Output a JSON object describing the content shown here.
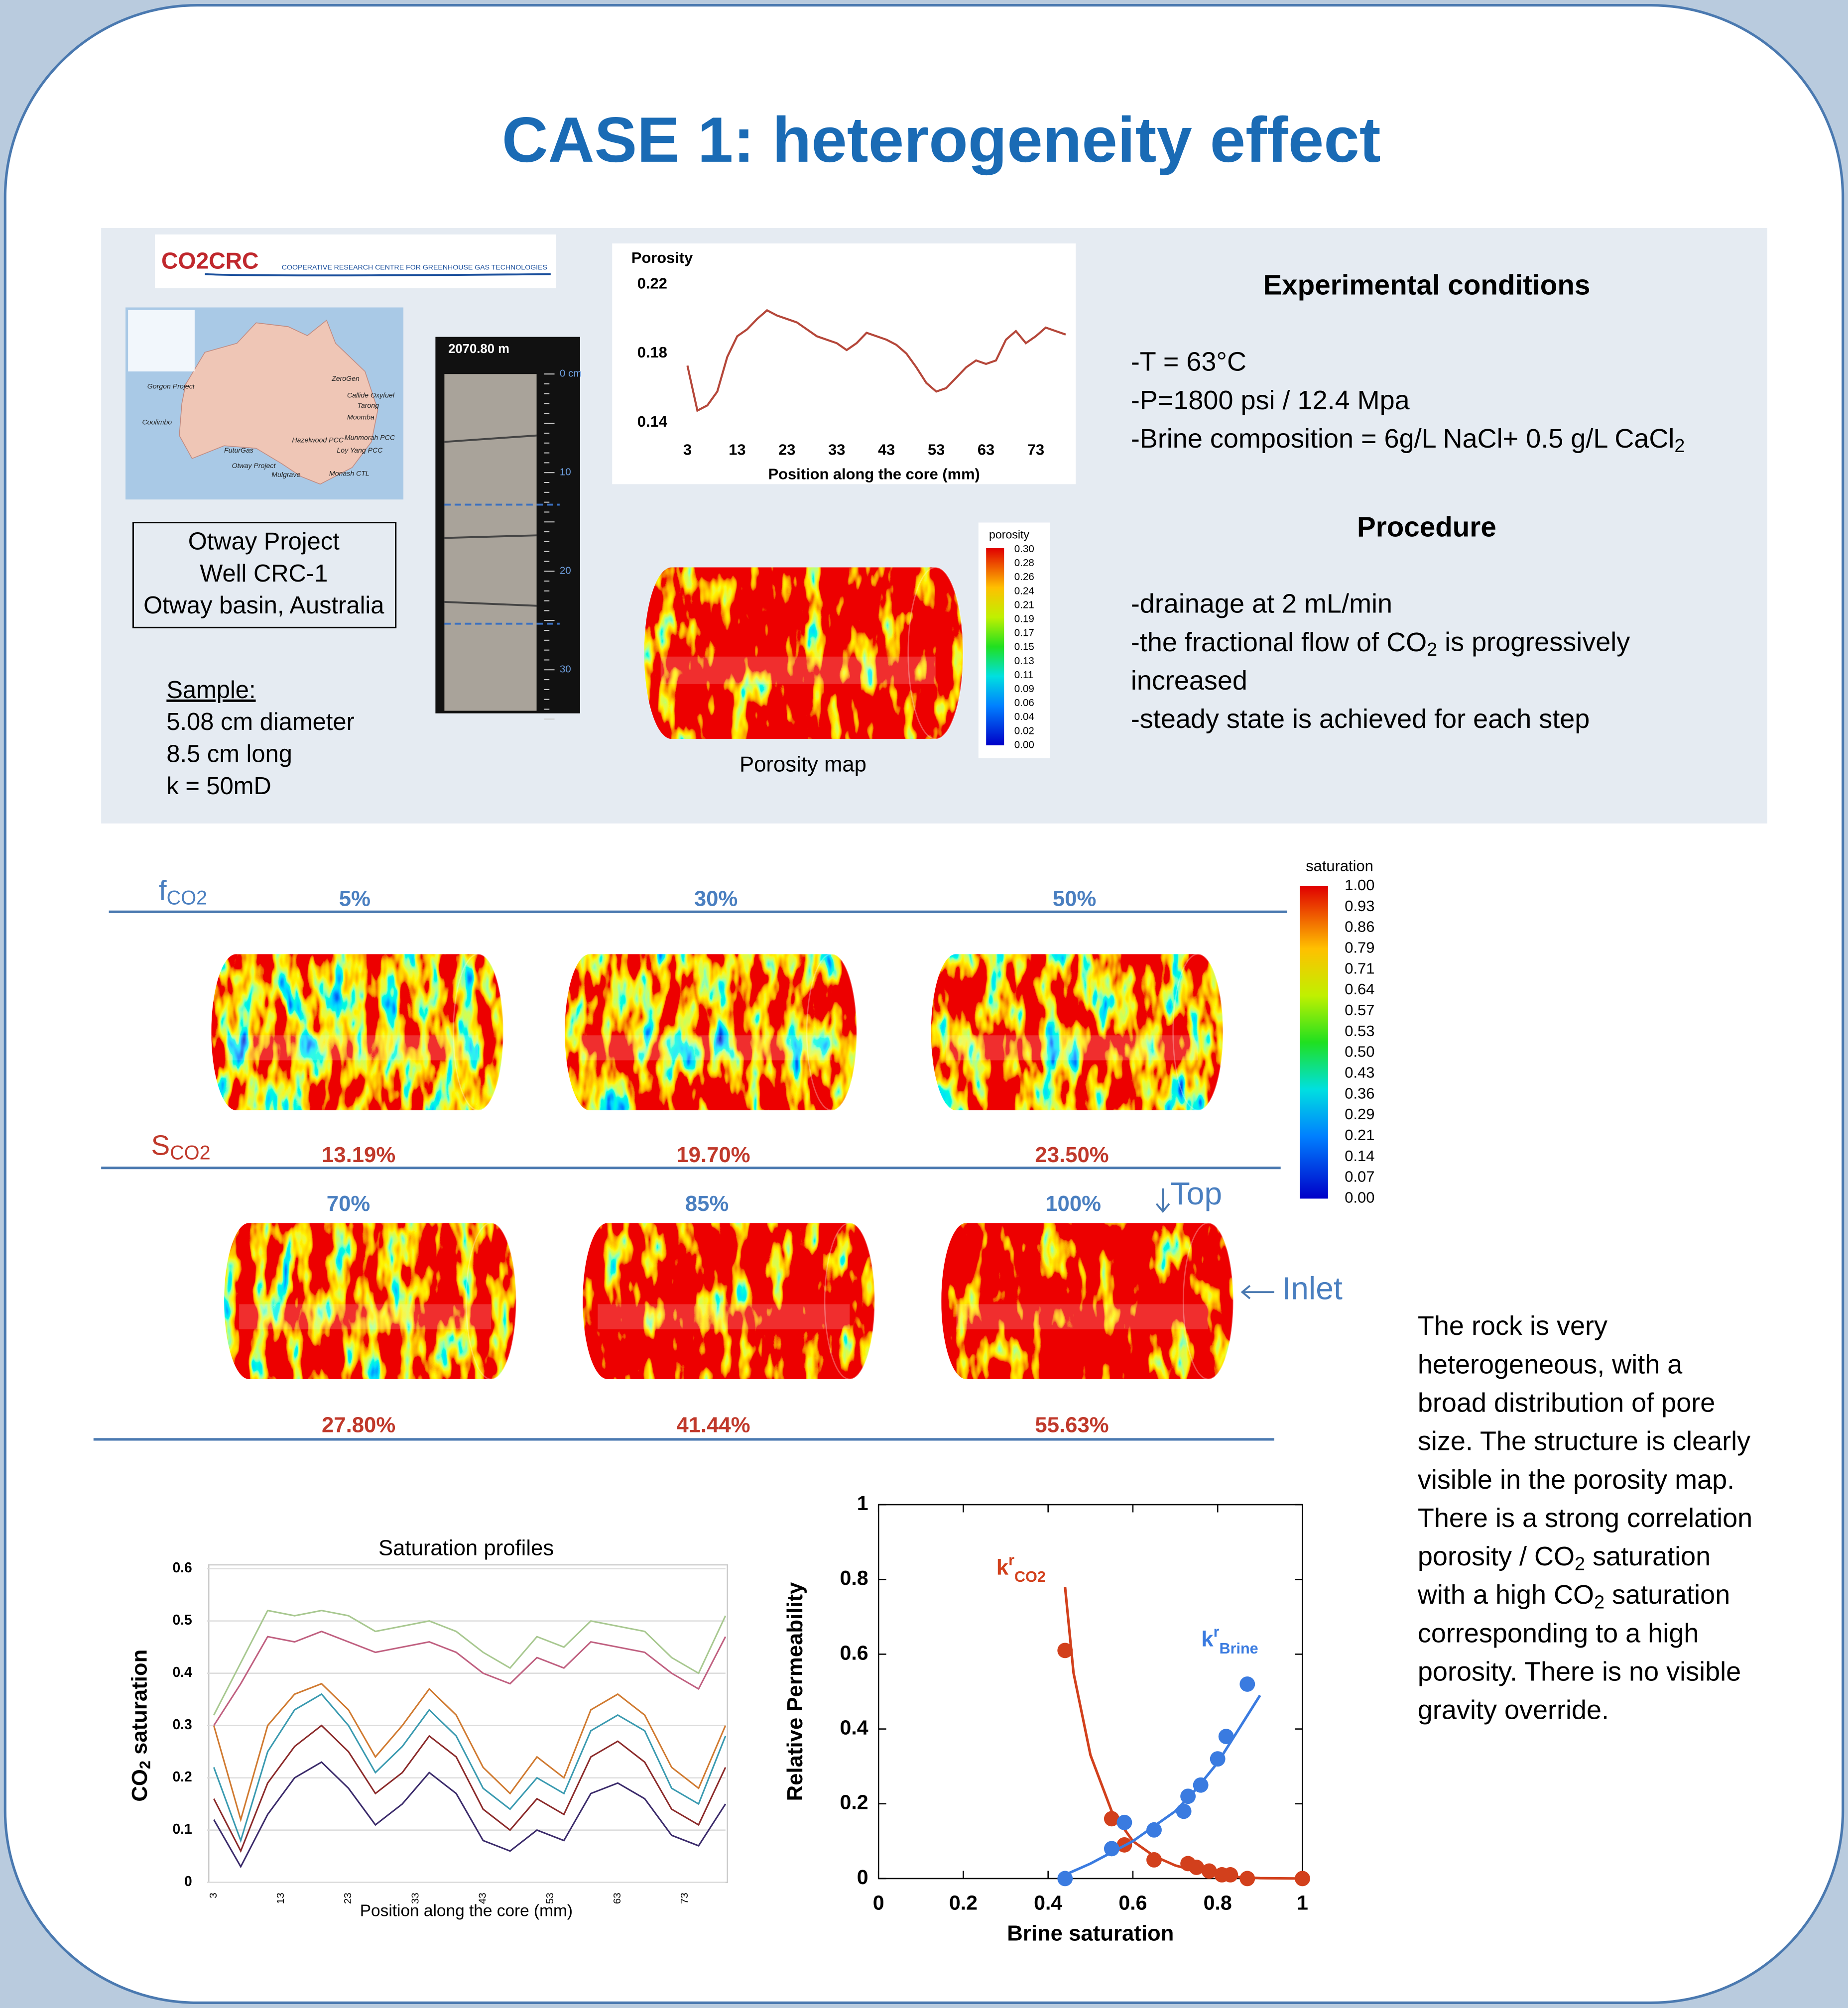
{
  "title": "CASE 1: heterogeneity effect",
  "logo": {
    "brand_left": "CO2",
    "brand_right": "CRC",
    "tagline": "COOPERATIVE RESEARCH CENTRE FOR GREENHOUSE GAS TECHNOLOGIES"
  },
  "map": {
    "sites": [
      "Gorgon Project",
      "Coolimbo",
      "ZeroGen",
      "Callide Oxyfuel",
      "Tarong",
      "Moomba",
      "Hazelwood PCC",
      "Munmorah PCC",
      "FuturGas",
      "Loy Yang PCC",
      "Otway Project",
      "Mulgrave",
      "Monash CTL"
    ]
  },
  "core": {
    "depth": "2070.80 m",
    "ruler": [
      "0 cm",
      "10",
      "20",
      "30"
    ]
  },
  "location": [
    "Otway Project",
    "Well CRC-1",
    "Otway basin, Australia"
  ],
  "sample": {
    "heading": "Sample:",
    "lines": [
      "5.08 cm diameter",
      "8.5 cm long",
      "k = 50mD"
    ]
  },
  "porosity_map": {
    "caption": "Porosity map",
    "colorbar_title": "porosity",
    "colorbar_ticks": [
      "0.30",
      "0.28",
      "0.26",
      "0.24",
      "0.21",
      "0.19",
      "0.17",
      "0.15",
      "0.13",
      "0.11",
      "0.09",
      "0.06",
      "0.04",
      "0.02",
      "0.00"
    ]
  },
  "conditions": {
    "heading": "Experimental conditions",
    "lines": [
      [
        "-T = 63°C"
      ],
      [
        "-P=1800 psi / 12.4 Mpa"
      ],
      [
        "-Brine composition = 6g/L NaCl+ 0.5 g/L CaCl",
        "2"
      ]
    ]
  },
  "procedure": {
    "heading": "Procedure",
    "lines": [
      [
        "-drainage at 2 mL/min"
      ],
      [
        "-the fractional flow of CO",
        "2",
        " is progressively"
      ],
      [
        "increased"
      ],
      [
        "-steady state is achieved for each step"
      ]
    ]
  },
  "saturation_maps": {
    "f_label": [
      "f",
      "CO2"
    ],
    "s_label": [
      "S",
      "CO2"
    ],
    "fractions": [
      "5%",
      "30%",
      "50%",
      "70%",
      "85%",
      "100%"
    ],
    "saturations": [
      "13.19%",
      "19.70%",
      "23.50%",
      "27.80%",
      "41.44%",
      "55.63%"
    ],
    "top": "Top",
    "inlet": "Inlet",
    "colorbar_title": "saturation",
    "colorbar_ticks": [
      "1.00",
      "0.93",
      "0.86",
      "0.79",
      "0.71",
      "0.64",
      "0.57",
      "0.53",
      "0.50",
      "0.43",
      "0.36",
      "0.29",
      "0.21",
      "0.14",
      "0.07",
      "0.00"
    ]
  },
  "description": [
    [
      "The rock is very"
    ],
    [
      "heterogeneous, with a"
    ],
    [
      "broad distribution of pore"
    ],
    [
      "size. The structure is clearly"
    ],
    [
      "visible in the porosity map."
    ],
    [
      "There is a strong correlation"
    ],
    [
      "porosity / CO",
      "2",
      " saturation"
    ],
    [
      "with a high CO",
      "2",
      " saturation"
    ],
    [
      "corresponding to a high"
    ],
    [
      "porosity. There is no visible"
    ],
    [
      "gravity override."
    ]
  ],
  "chart_data": [
    {
      "type": "line",
      "title": "Porosity",
      "x_label": "Position along the core (mm)",
      "x": [
        3,
        5,
        7,
        9,
        11,
        13,
        15,
        17,
        19,
        21,
        23,
        25,
        27,
        29,
        31,
        33,
        35,
        37,
        39,
        41,
        43,
        45,
        47,
        49,
        51,
        53,
        55,
        57,
        59,
        61,
        63,
        65,
        67,
        69,
        71,
        73,
        75,
        77,
        79
      ],
      "series": [
        {
          "color": "#b5473a",
          "values": [
            0.173,
            0.147,
            0.15,
            0.158,
            0.178,
            0.19,
            0.194,
            0.2,
            0.205,
            0.202,
            0.2,
            0.198,
            0.194,
            0.19,
            0.188,
            0.186,
            0.182,
            0.186,
            0.192,
            0.19,
            0.188,
            0.185,
            0.18,
            0.172,
            0.163,
            0.158,
            0.16,
            0.166,
            0.172,
            0.176,
            0.174,
            0.176,
            0.188,
            0.193,
            0.186,
            0.19,
            0.195,
            0.193,
            0.191
          ]
        }
      ],
      "xlim": [
        1,
        80
      ],
      "ylim": [
        0.14,
        0.22
      ],
      "xticks": [
        3,
        13,
        23,
        33,
        43,
        53,
        63,
        73
      ],
      "yticks": [
        0.14,
        0.18,
        0.22
      ]
    },
    {
      "type": "line",
      "title": "Saturation profiles",
      "y_label": [
        "CO",
        "2",
        " saturation"
      ],
      "x_label": "Position along the core (mm)",
      "x": [
        3,
        7,
        11,
        15,
        19,
        23,
        27,
        31,
        35,
        39,
        43,
        47,
        51,
        55,
        59,
        63,
        67,
        71,
        75,
        79
      ],
      "series": [
        {
          "color": "#3b2b6b",
          "values": [
            0.12,
            0.03,
            0.13,
            0.2,
            0.23,
            0.18,
            0.11,
            0.15,
            0.21,
            0.17,
            0.08,
            0.06,
            0.1,
            0.08,
            0.17,
            0.19,
            0.16,
            0.09,
            0.07,
            0.15
          ]
        },
        {
          "color": "#8b2a2a",
          "values": [
            0.16,
            0.06,
            0.19,
            0.26,
            0.3,
            0.25,
            0.17,
            0.21,
            0.28,
            0.24,
            0.14,
            0.1,
            0.16,
            0.13,
            0.24,
            0.27,
            0.23,
            0.14,
            0.11,
            0.22
          ]
        },
        {
          "color": "#3a9ab0",
          "values": [
            0.22,
            0.08,
            0.25,
            0.33,
            0.36,
            0.3,
            0.21,
            0.26,
            0.33,
            0.28,
            0.18,
            0.14,
            0.2,
            0.17,
            0.29,
            0.32,
            0.29,
            0.18,
            0.15,
            0.28
          ]
        },
        {
          "color": "#d07a30",
          "values": [
            0.3,
            0.12,
            0.3,
            0.36,
            0.38,
            0.33,
            0.24,
            0.3,
            0.37,
            0.32,
            0.22,
            0.17,
            0.24,
            0.2,
            0.33,
            0.36,
            0.32,
            0.22,
            0.18,
            0.3
          ]
        },
        {
          "color": "#c06080",
          "values": [
            0.3,
            0.38,
            0.47,
            0.46,
            0.48,
            0.46,
            0.44,
            0.45,
            0.46,
            0.44,
            0.4,
            0.38,
            0.43,
            0.41,
            0.46,
            0.45,
            0.44,
            0.4,
            0.37,
            0.47
          ]
        },
        {
          "color": "#a8c890",
          "values": [
            0.32,
            0.42,
            0.52,
            0.51,
            0.52,
            0.51,
            0.48,
            0.49,
            0.5,
            0.48,
            0.44,
            0.41,
            0.47,
            0.45,
            0.5,
            0.49,
            0.48,
            0.43,
            0.4,
            0.51
          ]
        }
      ],
      "xlim": [
        2,
        79
      ],
      "ylim": [
        0,
        0.6
      ],
      "xticks": [
        3,
        13,
        23,
        33,
        43,
        53,
        63,
        73
      ],
      "yticks": [
        0,
        0.1,
        0.2,
        0.3,
        0.4,
        0.5,
        0.6
      ],
      "grid": true
    },
    {
      "type": "scatter",
      "y_label": "Relative Permeability",
      "x_label": "Brine saturation",
      "series": [
        {
          "label": {
            "base": "k",
            "sup": "r",
            "sub": "CO2"
          },
          "color": "#d2401c",
          "x": [
            0.44,
            0.55,
            0.58,
            0.65,
            0.73,
            0.75,
            0.78,
            0.81,
            0.83,
            0.87,
            1
          ],
          "values": [
            0.61,
            0.16,
            0.09,
            0.05,
            0.04,
            0.03,
            0.02,
            0.01,
            0.01,
            0,
            0
          ],
          "fit_x": [
            0.44,
            0.46,
            0.5,
            0.55,
            0.6,
            0.65,
            0.7,
            0.75,
            0.8,
            0.85,
            0.9,
            1
          ],
          "fit_values": [
            0.78,
            0.55,
            0.33,
            0.18,
            0.1,
            0.06,
            0.035,
            0.02,
            0.01,
            0.004,
            0.001,
            0
          ]
        },
        {
          "label": {
            "base": "k",
            "sup": "r",
            "sub": "Brine"
          },
          "color": "#3a7be0",
          "x": [
            0.44,
            0.55,
            0.58,
            0.65,
            0.72,
            0.73,
            0.76,
            0.8,
            0.82,
            0.87
          ],
          "values": [
            0,
            0.08,
            0.15,
            0.13,
            0.18,
            0.22,
            0.25,
            0.32,
            0.38,
            0.52
          ],
          "fit_x": [
            0.44,
            0.5,
            0.55,
            0.6,
            0.65,
            0.7,
            0.75,
            0.8,
            0.85,
            0.9
          ],
          "fit_values": [
            0.01,
            0.04,
            0.07,
            0.1,
            0.14,
            0.18,
            0.24,
            0.31,
            0.4,
            0.49
          ]
        }
      ],
      "xlim": [
        0,
        1
      ],
      "ylim": [
        0,
        1
      ],
      "xticks": [
        0,
        0.2,
        0.4,
        0.6,
        0.8,
        1
      ],
      "yticks": [
        0,
        0.2,
        0.4,
        0.6,
        0.8,
        1
      ]
    }
  ]
}
